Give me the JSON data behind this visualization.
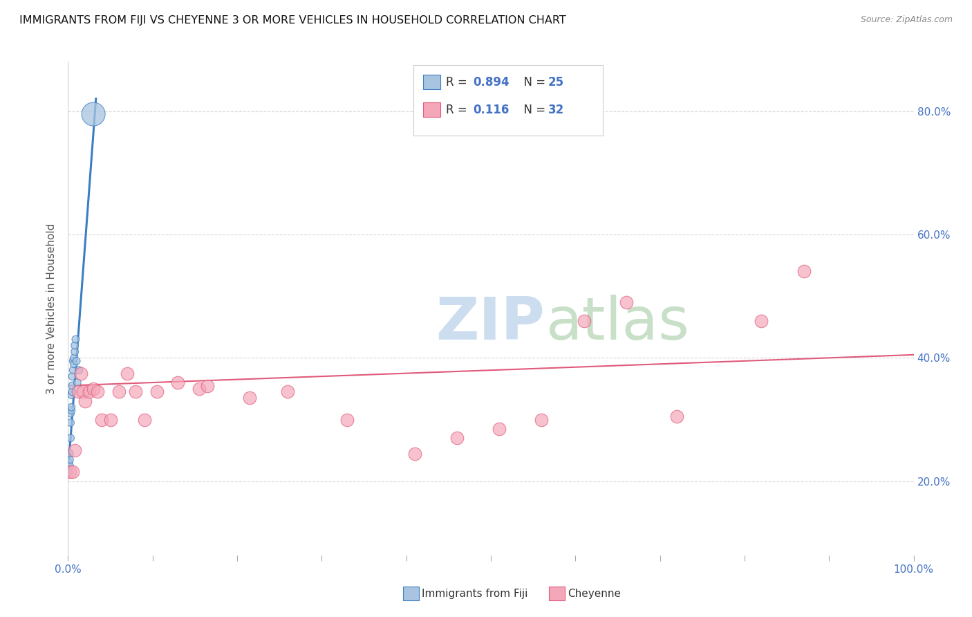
{
  "title": "IMMIGRANTS FROM FIJI VS CHEYENNE 3 OR MORE VEHICLES IN HOUSEHOLD CORRELATION CHART",
  "source": "Source: ZipAtlas.com",
  "ylabel": "3 or more Vehicles in Household",
  "y_ticks": [
    0.2,
    0.4,
    0.6,
    0.8
  ],
  "y_tick_labels": [
    "20.0%",
    "40.0%",
    "60.0%",
    "80.0%"
  ],
  "fiji_R": "0.894",
  "fiji_N": "25",
  "cheyenne_R": "0.116",
  "cheyenne_N": "32",
  "fiji_color": "#a8c4e0",
  "fiji_line_color": "#3a7fc1",
  "cheyenne_color": "#f4a7b9",
  "cheyenne_line_color": "#e05a7a",
  "fiji_x": [
    0.001,
    0.001,
    0.002,
    0.002,
    0.002,
    0.003,
    0.003,
    0.003,
    0.004,
    0.004,
    0.004,
    0.005,
    0.005,
    0.005,
    0.006,
    0.006,
    0.007,
    0.007,
    0.008,
    0.008,
    0.009,
    0.01,
    0.011,
    0.013,
    0.03
  ],
  "fiji_y": [
    0.215,
    0.23,
    0.225,
    0.235,
    0.245,
    0.27,
    0.295,
    0.31,
    0.315,
    0.32,
    0.34,
    0.345,
    0.355,
    0.37,
    0.38,
    0.395,
    0.39,
    0.4,
    0.41,
    0.42,
    0.43,
    0.395,
    0.36,
    0.38,
    0.795
  ],
  "fiji_sizes": [
    60,
    60,
    60,
    60,
    60,
    60,
    60,
    60,
    60,
    60,
    60,
    60,
    60,
    60,
    60,
    60,
    60,
    60,
    60,
    60,
    60,
    60,
    60,
    60,
    600
  ],
  "cheyenne_x": [
    0.002,
    0.005,
    0.008,
    0.012,
    0.015,
    0.018,
    0.02,
    0.025,
    0.03,
    0.035,
    0.04,
    0.05,
    0.06,
    0.07,
    0.08,
    0.09,
    0.105,
    0.13,
    0.155,
    0.165,
    0.215,
    0.26,
    0.33,
    0.41,
    0.46,
    0.51,
    0.56,
    0.61,
    0.66,
    0.72,
    0.82,
    0.87
  ],
  "cheyenne_y": [
    0.215,
    0.215,
    0.25,
    0.345,
    0.375,
    0.345,
    0.33,
    0.345,
    0.35,
    0.345,
    0.3,
    0.3,
    0.345,
    0.375,
    0.345,
    0.3,
    0.345,
    0.36,
    0.35,
    0.355,
    0.335,
    0.345,
    0.3,
    0.245,
    0.27,
    0.285,
    0.3,
    0.46,
    0.49,
    0.305,
    0.46,
    0.54
  ],
  "fiji_line_x": [
    0.0,
    0.033
  ],
  "fiji_line_y": [
    0.215,
    0.82
  ],
  "cheyenne_line_x": [
    0.0,
    1.0
  ],
  "cheyenne_line_y": [
    0.355,
    0.405
  ],
  "x_ticks": [
    0.0,
    0.1,
    0.2,
    0.3,
    0.4,
    0.5,
    0.6,
    0.7,
    0.8,
    0.9,
    1.0
  ],
  "xlim": [
    0.0,
    1.0
  ],
  "ylim": [
    0.08,
    0.88
  ]
}
